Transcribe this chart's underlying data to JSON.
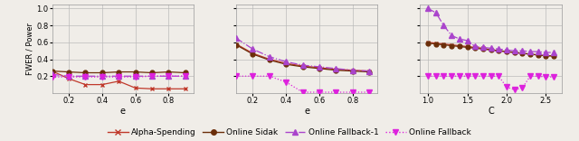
{
  "subplot1": {
    "xlabel": "e",
    "xlim": [
      0.1,
      0.95
    ],
    "xticks": [
      0.2,
      0.4,
      0.6,
      0.8
    ],
    "ylim": [
      0.0,
      1.05
    ],
    "yticks": [
      0.2,
      0.4,
      0.6,
      0.8,
      1.0
    ],
    "x": [
      0.1,
      0.2,
      0.3,
      0.4,
      0.5,
      0.6,
      0.7,
      0.8,
      0.9
    ],
    "alpha_spending": [
      0.26,
      0.17,
      0.1,
      0.1,
      0.14,
      0.06,
      0.05,
      0.05,
      0.05
    ],
    "online_sidak": [
      0.26,
      0.25,
      0.24,
      0.24,
      0.25,
      0.25,
      0.24,
      0.25,
      0.24
    ],
    "online_fb1": [
      0.22,
      0.2,
      0.2,
      0.2,
      0.2,
      0.2,
      0.2,
      0.2,
      0.2
    ],
    "online_fb": [
      0.19,
      0.19,
      0.19,
      0.19,
      0.19,
      0.19,
      0.2,
      0.2,
      0.2
    ]
  },
  "subplot2": {
    "xlabel": "e",
    "xlim": [
      0.1,
      0.95
    ],
    "xticks": [
      0.2,
      0.4,
      0.6,
      0.8
    ],
    "ylim": [
      0.0,
      1.05
    ],
    "yticks": [
      0.2,
      0.4,
      0.6,
      0.8,
      1.0
    ],
    "x": [
      0.1,
      0.2,
      0.3,
      0.4,
      0.5,
      0.6,
      0.7,
      0.8,
      0.9
    ],
    "alpha_spending": [
      0.58,
      0.47,
      0.4,
      0.35,
      0.32,
      0.3,
      0.28,
      0.27,
      0.26
    ],
    "online_sidak": [
      0.57,
      0.46,
      0.39,
      0.34,
      0.31,
      0.29,
      0.27,
      0.26,
      0.25
    ],
    "online_fb1": [
      0.65,
      0.52,
      0.43,
      0.37,
      0.33,
      0.31,
      0.29,
      0.27,
      0.26
    ],
    "online_fb": [
      0.2,
      0.2,
      0.2,
      0.13,
      0.01,
      0.01,
      0.01,
      0.01,
      0.01
    ]
  },
  "subplot3": {
    "xlabel": "C",
    "xlim": [
      0.9,
      2.7
    ],
    "xticks": [
      1.0,
      1.5,
      2.0,
      2.5
    ],
    "ylim": [
      0.0,
      1.05
    ],
    "yticks": [
      0.2,
      0.4,
      0.6,
      0.8,
      1.0
    ],
    "x": [
      1.0,
      1.1,
      1.2,
      1.3,
      1.4,
      1.5,
      1.6,
      1.7,
      1.8,
      1.9,
      2.0,
      2.1,
      2.2,
      2.3,
      2.4,
      2.5,
      2.6
    ],
    "alpha_spending": [
      0.6,
      0.59,
      0.58,
      0.57,
      0.56,
      0.55,
      0.54,
      0.53,
      0.51,
      0.5,
      0.49,
      0.48,
      0.47,
      0.46,
      0.45,
      0.44,
      0.44
    ],
    "online_sidak": [
      0.59,
      0.58,
      0.57,
      0.56,
      0.55,
      0.54,
      0.53,
      0.52,
      0.51,
      0.5,
      0.49,
      0.48,
      0.47,
      0.46,
      0.45,
      0.44,
      0.44
    ],
    "online_fb1": [
      1.0,
      0.95,
      0.8,
      0.68,
      0.64,
      0.62,
      0.55,
      0.54,
      0.53,
      0.52,
      0.51,
      0.5,
      0.5,
      0.49,
      0.49,
      0.48,
      0.48
    ],
    "online_fb": [
      0.2,
      0.2,
      0.2,
      0.2,
      0.2,
      0.2,
      0.2,
      0.2,
      0.2,
      0.2,
      0.07,
      0.04,
      0.06,
      0.2,
      0.2,
      0.19,
      0.19
    ]
  },
  "colors": {
    "alpha_spending": "#c0392b",
    "online_sidak": "#6b2e0a",
    "online_fb1": "#aa44cc",
    "online_fb": "#dd22dd"
  },
  "bg_color": "#f0ede8",
  "ylabel": "FWER / Power",
  "legend": {
    "alpha_spending": "Alpha-Spending",
    "online_sidak": "Online Sidak",
    "online_fb1": "Online Fallback-1",
    "online_fb": "Online Fallback"
  },
  "figsize": [
    6.4,
    1.56
  ],
  "dpi": 100
}
